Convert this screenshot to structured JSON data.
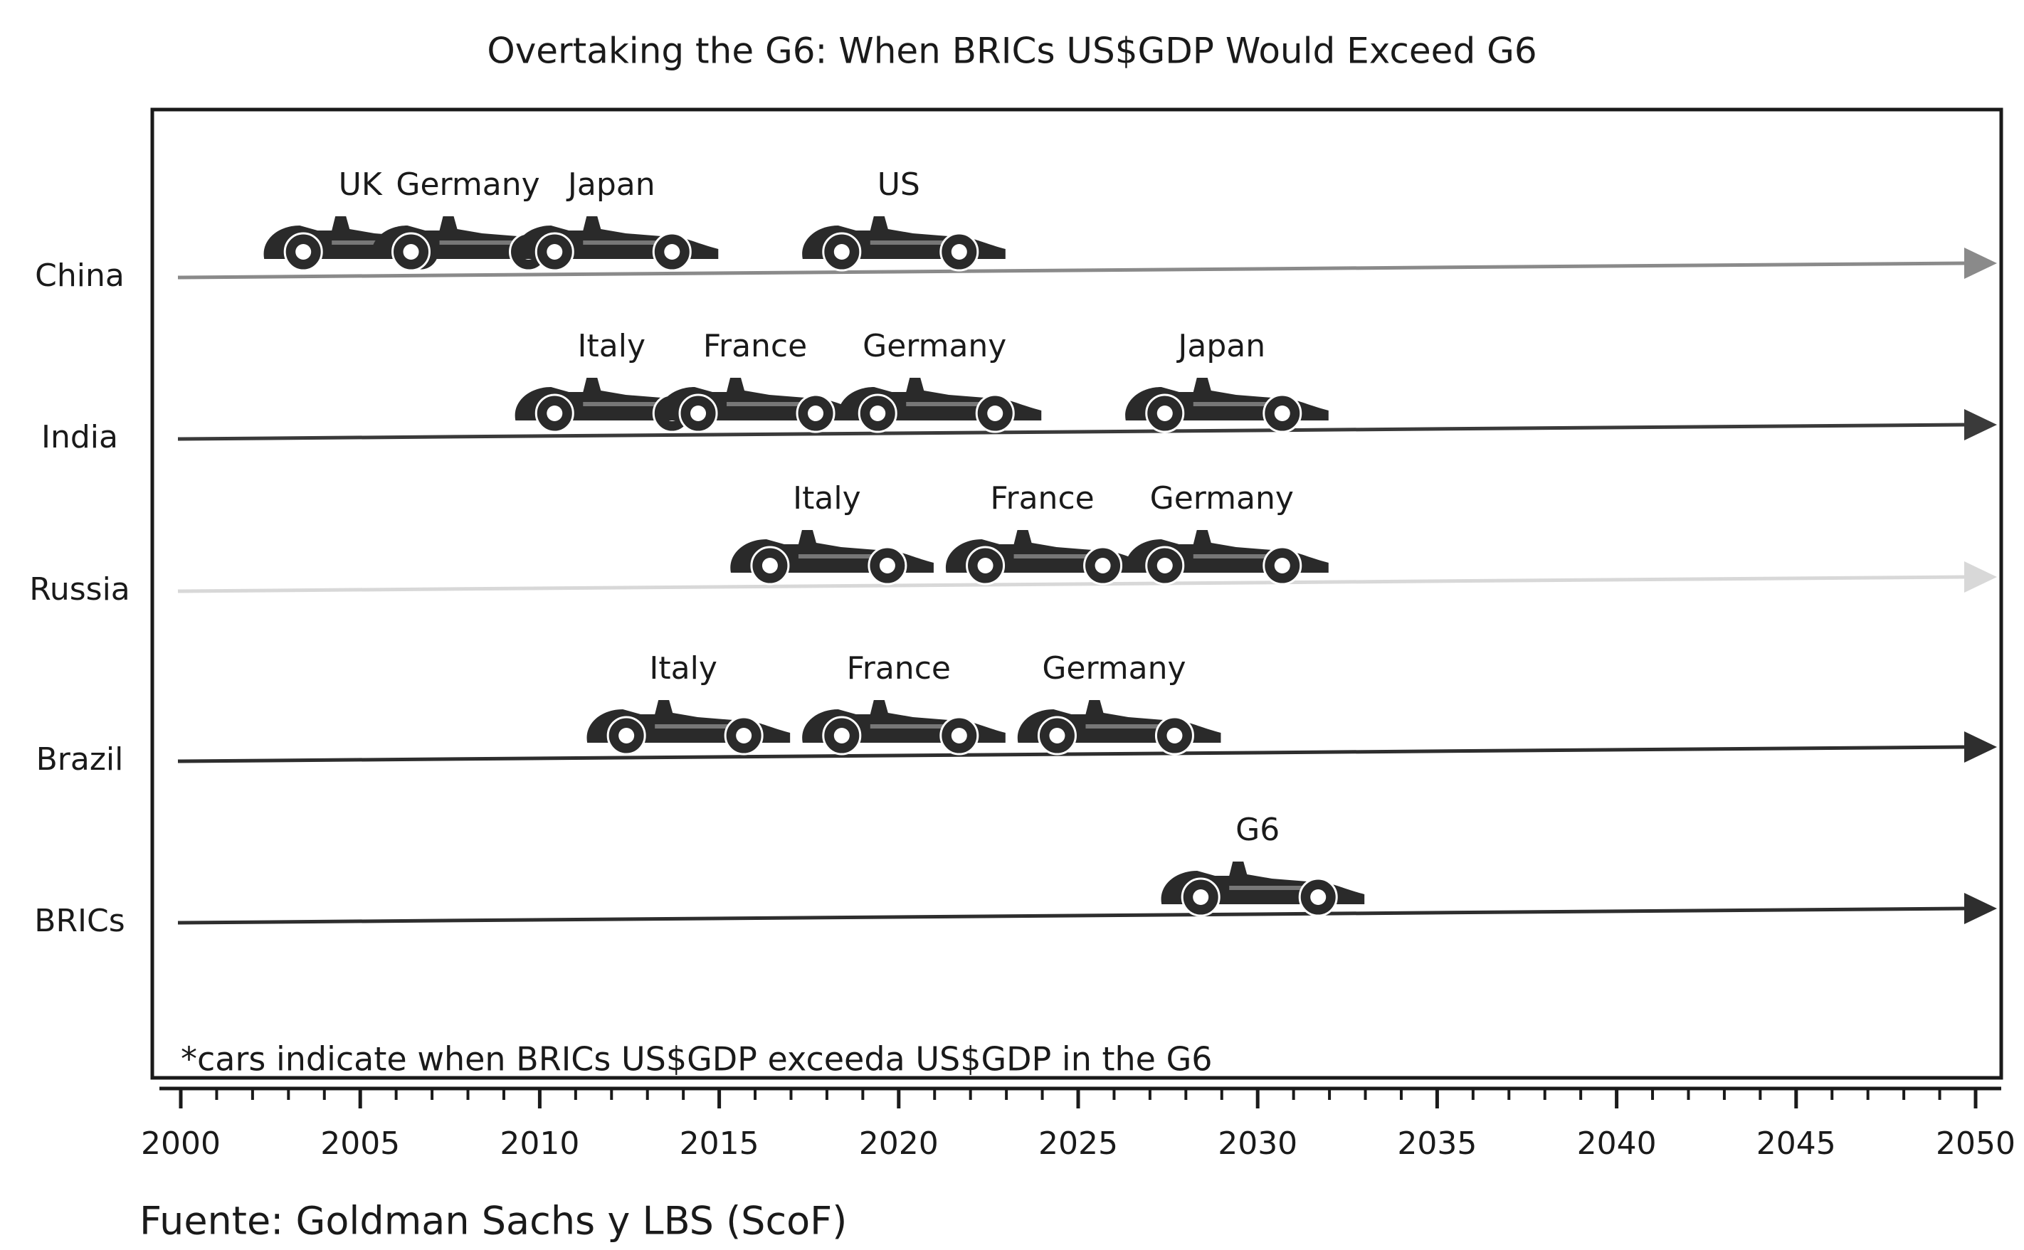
{
  "chart_data": {
    "type": "timeline",
    "title": "Overtaking the G6: When BRICs US$GDP Would Exceed G6",
    "note": "*cars indicate when BRICs US$GDP exceeda US$GDP in the G6",
    "source": "Fuente: Goldman Sachs  y LBS (ScoF)",
    "xlim": [
      2000,
      2050
    ],
    "xticks": [
      2000,
      2005,
      2010,
      2015,
      2020,
      2025,
      2030,
      2035,
      2040,
      2045,
      2050
    ],
    "xticks_minor": [
      2000,
      2001,
      2002,
      2003,
      2004,
      2005,
      2006,
      2007,
      2008,
      2009,
      2010,
      2011,
      2012,
      2013,
      2014,
      2015,
      2016,
      2017,
      2018,
      2019,
      2020,
      2021,
      2022,
      2023,
      2024,
      2025,
      2026,
      2027,
      2028,
      2029,
      2030,
      2031,
      2032,
      2033,
      2034,
      2035,
      2036,
      2037,
      2038,
      2039,
      2040,
      2041,
      2042,
      2043,
      2044,
      2045,
      2046,
      2047,
      2048,
      2049,
      2050
    ],
    "car_color": "#2a2a2a",
    "series": [
      {
        "name": "China",
        "color": "#8a8a8a",
        "labels": [
          "UK",
          "Germany",
          "Japan",
          "US"
        ],
        "values": [
          2005,
          2008,
          2012,
          2020
        ]
      },
      {
        "name": "India",
        "color": "#3a3a3a",
        "labels": [
          "Italy",
          "France",
          "Germany",
          "Japan"
        ],
        "values": [
          2012,
          2016,
          2021,
          2029
        ]
      },
      {
        "name": "Russia",
        "color": "#d8d8d8",
        "labels": [
          "Italy",
          "France",
          "Germany"
        ],
        "values": [
          2018,
          2024,
          2029
        ]
      },
      {
        "name": "Brazil",
        "color": "#2e2e2e",
        "labels": [
          "Italy",
          "France",
          "Germany"
        ],
        "values": [
          2014,
          2020,
          2026
        ]
      },
      {
        "name": "BRICs",
        "color": "#2e2e2e",
        "labels": [
          "G6"
        ],
        "values": [
          2030
        ]
      }
    ]
  }
}
